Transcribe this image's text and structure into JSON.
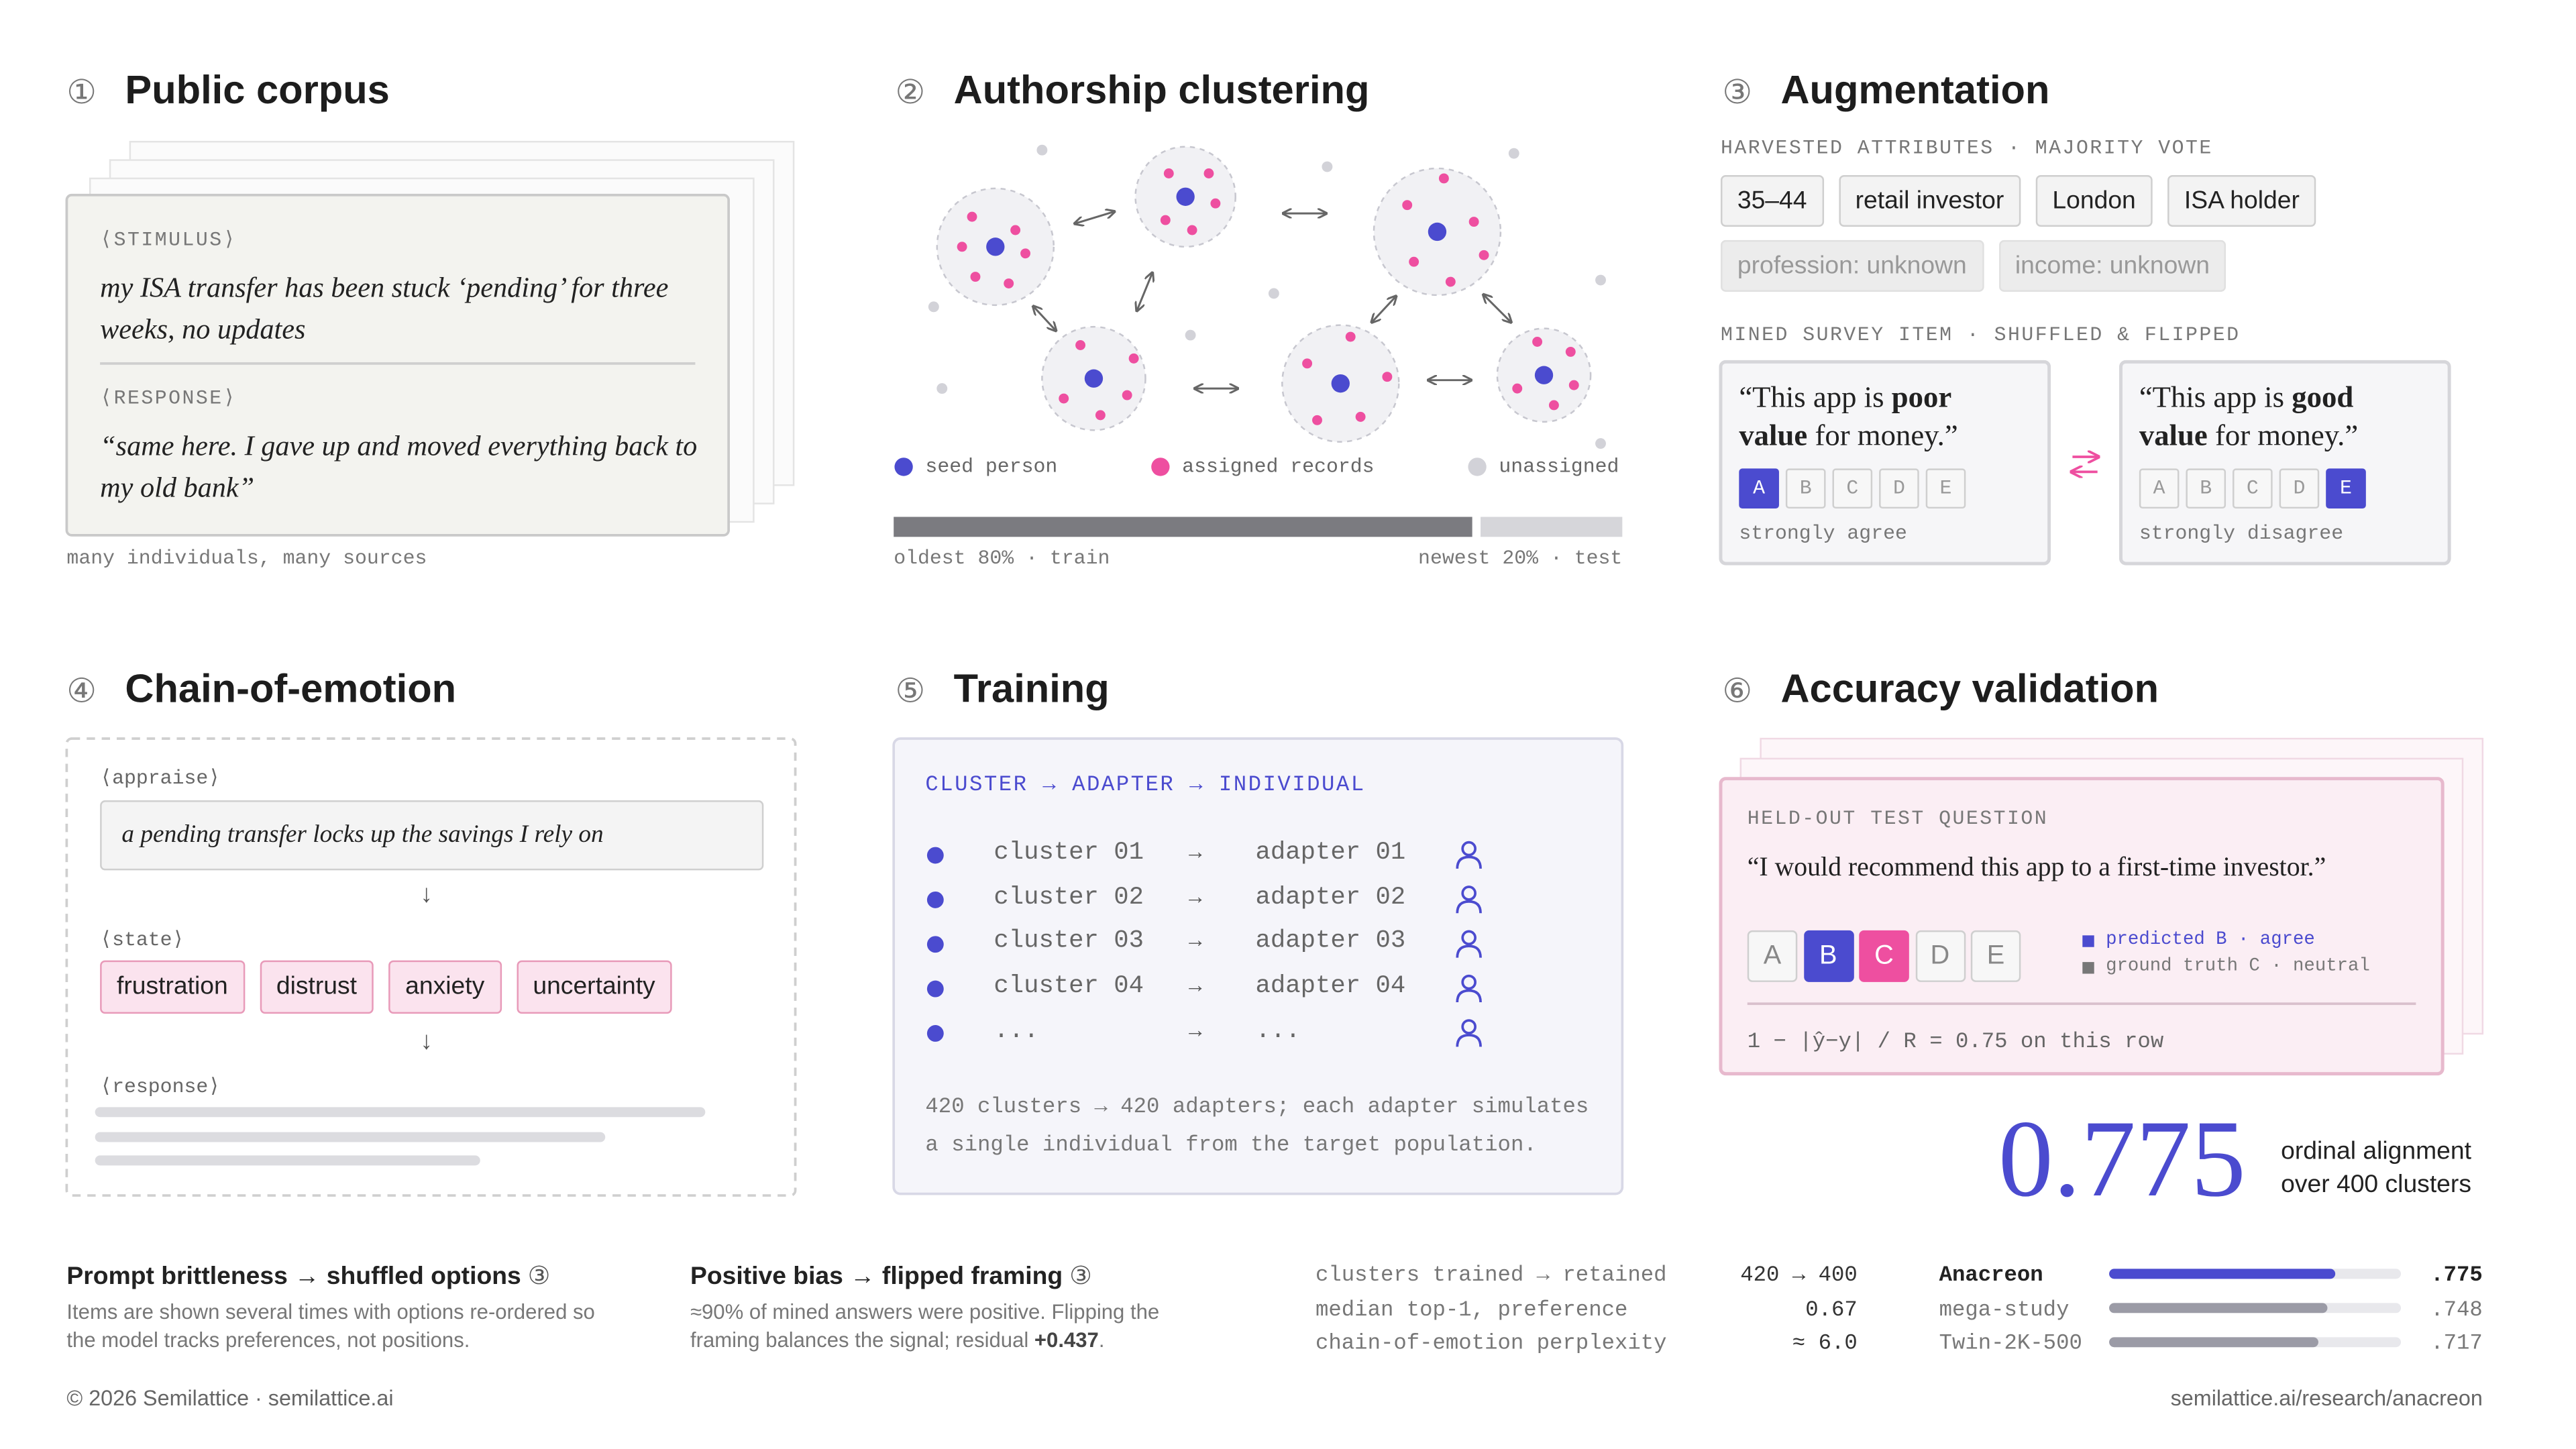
{
  "corpus": {
    "number": "①",
    "title": "Public corpus",
    "stimulus_label": "⟨STIMULUS⟩",
    "stimulus": "my ISA transfer has been stuck ‘pending’ for three weeks, no updates",
    "response_label": "⟨RESPONSE⟩",
    "response": "“same here. I gave up and moved everything back to my old bank”",
    "caption": "many individuals, many sources"
  },
  "clustering": {
    "number": "②",
    "title": "Authorship clustering",
    "legend": [
      "seed person",
      "assigned records",
      "unassigned"
    ],
    "split_left": "oldest 80% · train",
    "split_right": "newest 20% · test"
  },
  "augmentation": {
    "number": "③",
    "title": "Augmentation",
    "attributes_label": "HARVESTED ATTRIBUTES · MAJORITY VOTE",
    "attributes": [
      "35–44",
      "retail investor",
      "London",
      "ISA holder"
    ],
    "unknown": [
      "profession: unknown",
      "income: unknown"
    ],
    "survey_label": "MINED SURVEY ITEM · SHUFFLED & FLIPPED",
    "options": [
      "A",
      "B",
      "C",
      "D",
      "E"
    ],
    "items": [
      {
        "quote_start": "“This app is ",
        "quote_bold": "poor value",
        "quote_end": " for money.”",
        "selected": "A",
        "answer": "strongly agree"
      },
      {
        "quote_start": "“This app is ",
        "quote_bold": "good value",
        "quote_end": " for money.”",
        "selected": "E",
        "answer": "strongly disagree"
      }
    ]
  },
  "emotion": {
    "number": "④",
    "title": "Chain-of-emotion",
    "appraise_label": "⟨appraise⟩",
    "appraisal": "a pending transfer locks up the savings I rely on",
    "arrow": "↓",
    "state_label": "⟨state⟩",
    "states": [
      "frustration",
      "distrust",
      "anxiety",
      "uncertainty"
    ],
    "response_label": "⟨response⟩"
  },
  "training": {
    "number": "⑤",
    "title": "Training",
    "header": "CLUSTER → ADAPTER → INDIVIDUAL",
    "arrow": "→",
    "rows": [
      {
        "cluster": "cluster 01",
        "adapter": "adapter 01"
      },
      {
        "cluster": "cluster 02",
        "adapter": "adapter 02"
      },
      {
        "cluster": "cluster 03",
        "adapter": "adapter 03"
      },
      {
        "cluster": "cluster 04",
        "adapter": "adapter 04"
      },
      {
        "cluster": "...",
        "adapter": "..."
      }
    ],
    "footer": "420 clusters → 420 adapters; each adapter simulates a single individual from the target population."
  },
  "validation": {
    "number": "⑥",
    "title": "Accuracy validation",
    "label": "HELD-OUT TEST QUESTION",
    "question": "“I would recommend this app to a first-time investor.”",
    "options": [
      "A",
      "B",
      "C",
      "D",
      "E"
    ],
    "predicted": "B",
    "truth": "C",
    "legend_predicted": "predicted B · agree",
    "legend_truth": "ground truth C · neutral",
    "formula": "1 − |ŷ−y| / R = 0.75 on this row",
    "score": "0.775",
    "score_caption": [
      "ordinal alignment",
      "over 400 clusters"
    ]
  },
  "notes": [
    {
      "title": "Prompt brittleness → shuffled options",
      "badge": "③",
      "text_start": "Items are shown several times with options re-ordered so the model tracks preferences, not positions.",
      "text_bold": "",
      "text_end": ""
    },
    {
      "title": "Positive bias → flipped framing",
      "badge": "③",
      "text_start": "≈90% of mined answers were positive. Flipping the framing balances the signal; residual ",
      "text_bold": "+0.437",
      "text_end": "."
    }
  ],
  "stats": [
    {
      "label": "clusters trained → retained",
      "value": "420 → 400"
    },
    {
      "label": "median top-1, preference",
      "value": "0.67"
    },
    {
      "label": "chain-of-emotion perplexity",
      "value": "≈ 6.0"
    }
  ],
  "comparison": {
    "xlim": [
      0,
      1
    ],
    "rows": [
      {
        "name": "Anacreon",
        "value": 0.775,
        "value_label": ".775",
        "color": "#4b4bcf"
      },
      {
        "name": "mega-study",
        "value": 0.748,
        "value_label": ".748",
        "color": "#9b9ba6"
      },
      {
        "name": "Twin-2K-500",
        "value": 0.717,
        "value_label": ".717",
        "color": "#9b9ba6"
      }
    ]
  },
  "footer": {
    "left": "© 2026 Semilattice · semilattice.ai",
    "right": "semilattice.ai/research/anacreon"
  }
}
